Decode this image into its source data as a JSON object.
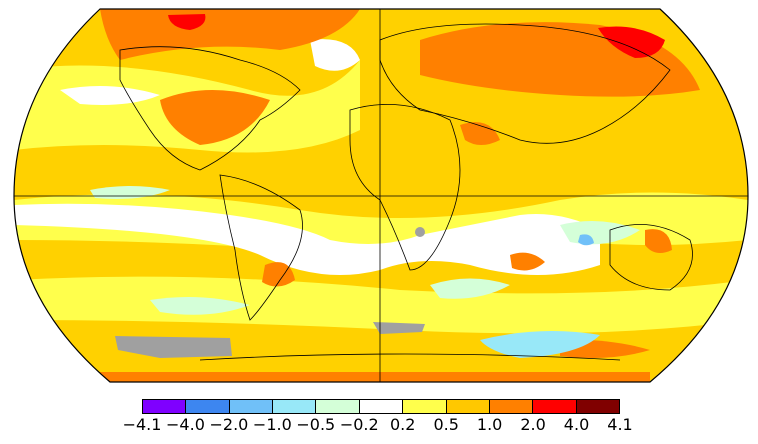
{
  "map": {
    "projection": "robinson",
    "ocean_base_color": "#ffd100"
  },
  "legend": {
    "colors": [
      "#7f00ff",
      "#3d86f0",
      "#70c0f8",
      "#98e8f8",
      "#d4ffd8",
      "#ffffff",
      "#ffff4c",
      "#ffc800",
      "#ff8000",
      "#ff0000",
      "#800000"
    ],
    "tick_labels": [
      "−4.1",
      "−4.0",
      "−2.0",
      "−1.0",
      "−0.5",
      "−0.2",
      "0.2",
      "0.5",
      "1.0",
      "2.0",
      "4.0",
      "4.1"
    ]
  }
}
